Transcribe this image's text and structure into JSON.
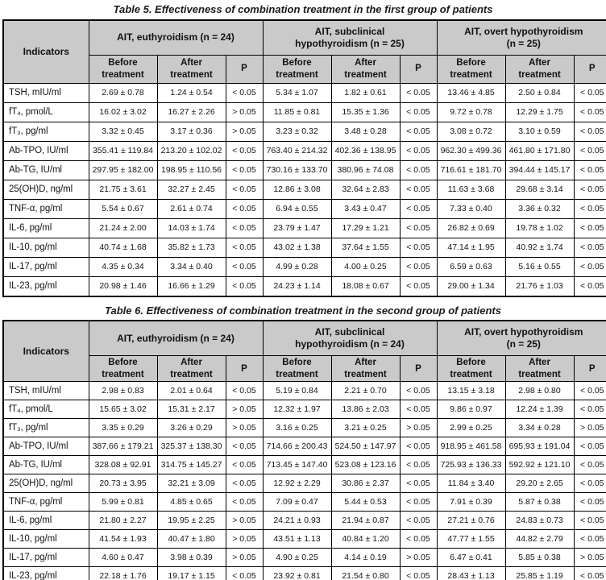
{
  "colors": {
    "header_bg": "#cacaca",
    "border": "#000000",
    "text": "#141414",
    "page_bg": "#ffffff"
  },
  "tables": [
    {
      "title": "Table 5. Effectiveness of combination treatment in the first group of patients",
      "indicators_header": "Indicators",
      "groups": [
        {
          "label": "AIT, euthyroidism (n = 24)"
        },
        {
          "label": "AIT, subclinical\nhypothyroidism (n = 25)"
        },
        {
          "label": "AIT, overt hypothyroidism\n(n = 25)"
        }
      ],
      "subheaders": {
        "before": "Before treatment",
        "after": "After treatment",
        "p": "P"
      },
      "rows": [
        {
          "indicator": "TSH, mIU/ml",
          "cells": [
            "2.69 ± 0.78",
            "1.24 ± 0.54",
            "< 0.05",
            "5.34 ± 1.07",
            "1.82 ± 0.61",
            "< 0.05",
            "13.46 ± 4.85",
            "2.50 ± 0.84",
            "< 0.05"
          ]
        },
        {
          "indicator": "fT₄, pmol/L",
          "cells": [
            "16.02 ± 3.02",
            "16.27 ± 2.26",
            "> 0.05",
            "11.85 ± 0.81",
            "15.35 ± 1.36",
            "< 0.05",
            "9.72 ± 0.78",
            "12.29 ± 1.75",
            "< 0.05"
          ]
        },
        {
          "indicator": "fT₃, pg/ml",
          "cells": [
            "3.32 ± 0.45",
            "3.17 ± 0.36",
            "> 0.05",
            "3.23 ± 0.32",
            "3.48 ± 0.28",
            "< 0.05",
            "3.08 ± 0.72",
            "3.10 ± 0.59",
            "< 0.05"
          ]
        },
        {
          "indicator": "Ab-TPO, IU/ml",
          "cells": [
            "355.41 ± 119.84",
            "213.20 ± 102.02",
            "< 0.05",
            "763.40 ± 214.32",
            "402.36 ± 138.95",
            "< 0.05",
            "962.30 ± 499.36",
            "461.80 ± 171.80",
            "< 0.05"
          ]
        },
        {
          "indicator": "Ab-TG, IU/ml",
          "cells": [
            "297.95 ± 182.00",
            "198.95 ± 110.56",
            "< 0.05",
            "730.16 ± 133.70",
            "380.96 ± 74.08",
            "< 0.05",
            "716.61 ± 181.70",
            "394.44 ± 145.17",
            "< 0.05"
          ]
        },
        {
          "indicator": "25(OH)D, ng/ml",
          "cells": [
            "21.75 ± 3.61",
            "32.27 ± 2.45",
            "< 0.05",
            "12.86 ± 3.08",
            "32.64 ± 2.83",
            "< 0.05",
            "11.63 ± 3.68",
            "29.68 ± 3.14",
            "< 0.05"
          ]
        },
        {
          "indicator": "TNF-α, pg/ml",
          "cells": [
            "5.54 ± 0.67",
            "2.61 ± 0.74",
            "< 0.05",
            "6.94 ± 0.55",
            "3.43 ± 0.47",
            "< 0.05",
            "7.33 ± 0.40",
            "3.36 ± 0.32",
            "< 0.05"
          ]
        },
        {
          "indicator": "IL-6, pg/ml",
          "cells": [
            "21.24 ± 2.00",
            "14.03 ± 1.74",
            "< 0.05",
            "23.79 ± 1.47",
            "17.29 ± 1.21",
            "< 0.05",
            "26.82 ± 0.69",
            "19.78 ± 1.02",
            "< 0.05"
          ]
        },
        {
          "indicator": "IL-10, pg/ml",
          "cells": [
            "40.74 ± 1.68",
            "35.82 ± 1.73",
            "< 0.05",
            "43.02 ± 1.38",
            "37.64 ± 1.55",
            "< 0.05",
            "47.14 ± 1.95",
            "40.92 ± 1.74",
            "< 0.05"
          ]
        },
        {
          "indicator": "IL-17, pg/ml",
          "cells": [
            "4.35 ± 0.34",
            "3.34 ± 0.40",
            "< 0.05",
            "4.99 ± 0.28",
            "4.00 ± 0.25",
            "< 0.05",
            "6.59 ± 0.63",
            "5.16 ± 0.55",
            "< 0.05"
          ]
        },
        {
          "indicator": "IL-23, pg/ml",
          "cells": [
            "20.98 ± 1.46",
            "16.66 ± 1.29",
            "< 0.05",
            "24.23 ± 1.14",
            "18.08 ± 0.67",
            "< 0.05",
            "29.00 ± 1.34",
            "21.76 ± 1.03",
            "< 0.05"
          ]
        }
      ]
    },
    {
      "title": "Table 6. Effectiveness of combination treatment in the second group of patients",
      "indicators_header": "Indicators",
      "groups": [
        {
          "label": "AIT, euthyroidism (n = 24)"
        },
        {
          "label": "AIT, subclinical\nhypothyroidism (n = 24)"
        },
        {
          "label": "AIT, overt hypothyroidism\n(n = 25)"
        }
      ],
      "subheaders": {
        "before": "Before treatment",
        "after": "After treatment",
        "p": "P"
      },
      "rows": [
        {
          "indicator": "TSH, mIU/ml",
          "cells": [
            "2.98 ± 0.83",
            "2.01 ± 0.64",
            "< 0.05",
            "5.19 ± 0.84",
            "2.21 ± 0.70",
            "< 0.05",
            "13.15 ± 3.18",
            "2.98 ± 0.80",
            "< 0.05"
          ]
        },
        {
          "indicator": "fT₄, pmol/L",
          "cells": [
            "15.65 ± 3.02",
            "15.31 ± 2.17",
            "> 0.05",
            "12.32 ± 1.97",
            "13.86 ± 2.03",
            "< 0.05",
            "9.86 ± 0.97",
            "12.24 ± 1.39",
            "< 0.05"
          ]
        },
        {
          "indicator": "fT₃, pg/ml",
          "cells": [
            "3.35 ± 0.29",
            "3.26 ± 0.29",
            "> 0.05",
            "3.16 ± 0.25",
            "3.21 ± 0.25",
            "> 0.05",
            "2.99 ± 0.25",
            "3.34 ± 0.28",
            "> 0.05"
          ]
        },
        {
          "indicator": "Ab-TPO, IU/ml",
          "cells": [
            "387.66 ± 179.21",
            "325.37 ± 138.30",
            "< 0.05",
            "714.66 ± 200.43",
            "524.50 ± 147.97",
            "< 0.05",
            "918.95 ± 461.58",
            "695.93 ± 191.04",
            "< 0.05"
          ]
        },
        {
          "indicator": "Ab-TG, IU/ml",
          "cells": [
            "328.08 ± 92.91",
            "314.75 ± 145.27",
            "< 0.05",
            "713.45 ± 147.40",
            "523.08 ± 123.16",
            "< 0.05",
            "725.93 ± 136.33",
            "592.92 ± 121.10",
            "< 0.05"
          ]
        },
        {
          "indicator": "25(OH)D, ng/ml",
          "cells": [
            "20.73 ± 3.95",
            "32.21 ± 3.09",
            "< 0.05",
            "12.92 ± 2.29",
            "30.86 ± 2.37",
            "< 0.05",
            "11.84 ± 3.40",
            "29.20 ± 2.65",
            "< 0.05"
          ]
        },
        {
          "indicator": "TNF-α, pg/ml",
          "cells": [
            "5.99 ± 0.81",
            "4.85 ± 0.65",
            "< 0.05",
            "7.09 ± 0.47",
            "5.44 ± 0.53",
            "< 0.05",
            "7.91 ± 0.39",
            "5.87 ± 0.38",
            "< 0.05"
          ]
        },
        {
          "indicator": "IL-6, pg/ml",
          "cells": [
            "21.80 ± 2.27",
            "19.95 ± 2.25",
            "> 0.05",
            "24.21 ± 0.93",
            "21.94 ± 0.87",
            "< 0.05",
            "27.21 ± 0.76",
            "24.83 ± 0.73",
            "< 0.05"
          ]
        },
        {
          "indicator": "IL-10, pg/ml",
          "cells": [
            "41.54 ± 1.93",
            "40.47 ± 1.80",
            "> 0.05",
            "43.51 ± 1.13",
            "40.84 ± 1.20",
            "< 0.05",
            "47.77 ± 1.55",
            "44.82 ± 2.79",
            "< 0.05"
          ]
        },
        {
          "indicator": "IL-17, pg/ml",
          "cells": [
            "4.60 ± 0.47",
            "3.98 ± 0.39",
            "> 0.05",
            "4.90 ± 0.25",
            "4.14 ± 0.19",
            "> 0.05",
            "6.47 ± 0.41",
            "5.85 ± 0.38",
            "> 0.05"
          ]
        },
        {
          "indicator": "IL-23, pg/ml",
          "cells": [
            "22.18 ± 1.76",
            "19.17 ± 1.15",
            "< 0.05",
            "23.92 ± 0.81",
            "21.54 ± 0.80",
            "< 0.05",
            "28.43 ± 1.13",
            "25.85 ± 1.19",
            "< 0.05"
          ]
        }
      ]
    }
  ]
}
